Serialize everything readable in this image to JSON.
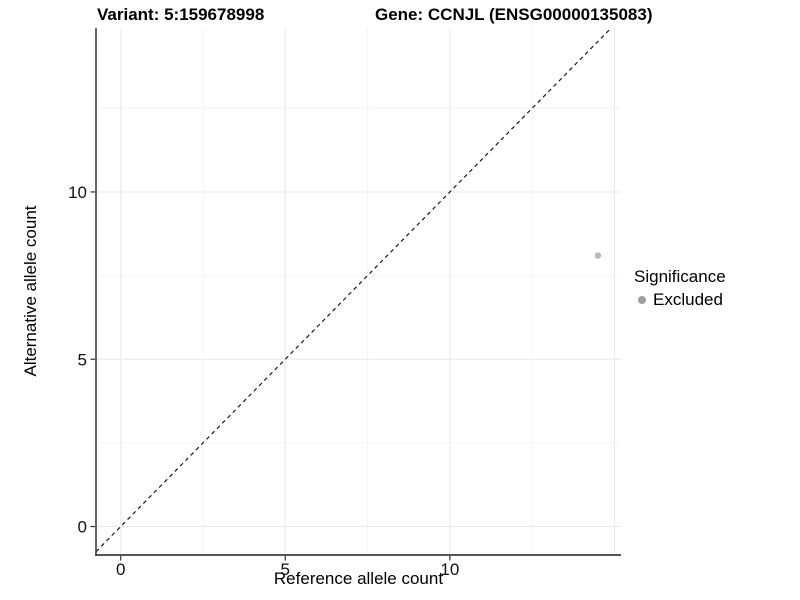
{
  "chart_data": {
    "type": "scatter",
    "title_left": "Variant: 5:159678998",
    "title_right": "Gene: CCNJL (ENSG00000135083)",
    "xlabel": "Reference allele count",
    "ylabel": "Alternative allele count",
    "xlim": [
      -0.75,
      15.2
    ],
    "ylim": [
      -0.85,
      14.9
    ],
    "x_major_ticks": [
      0,
      5,
      10
    ],
    "y_major_ticks": [
      0,
      5,
      10
    ],
    "grid_major_values": [
      0,
      5,
      10,
      15
    ],
    "grid_minor_values": [
      2.5,
      7.5,
      12.5
    ],
    "grid_on": true,
    "legend_position": "right-center",
    "series": [
      {
        "name": "Excluded",
        "color": "#b8b8b8",
        "points": [
          {
            "x": 14.5,
            "y": 8.1
          }
        ]
      }
    ],
    "reference_line": {
      "kind": "identity y=x",
      "style": "dashed",
      "color": "#1a1a1a"
    }
  },
  "legend": {
    "title": "Significance",
    "items": [
      {
        "label": "Excluded",
        "color": "#9e9e9e"
      }
    ]
  },
  "colors": {
    "background": "#ffffff",
    "axis_line": "#3f3f3f",
    "grid_major": "#e9e9e9",
    "grid_minor": "#f4f4f4",
    "tick": "#333333",
    "text": "#000000"
  }
}
